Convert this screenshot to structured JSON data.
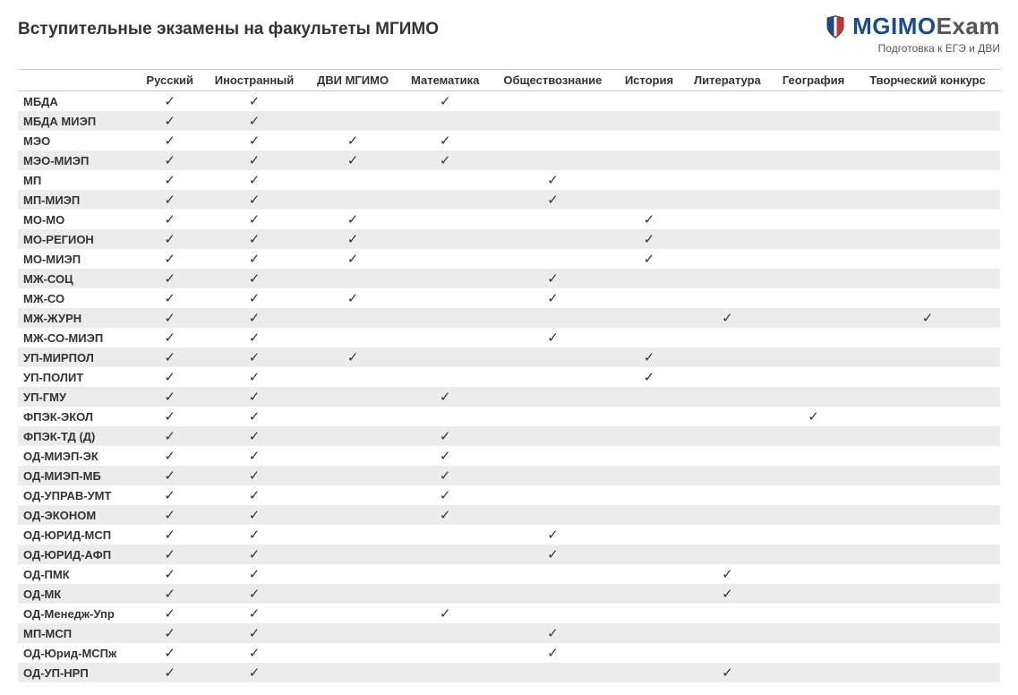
{
  "title": "Вступительные экзамены на факультеты МГИМО",
  "logo": {
    "part1": "MGIMO",
    "part2": "Exam",
    "subtitle": "Подготовка к ЕГЭ и ДВИ",
    "color_part1": "#1a4b8c",
    "color_part2": "#555555",
    "icon_colors": {
      "left": "#1a4b8c",
      "mid": "#ffffff",
      "right": "#c0392b",
      "outline": "#333333"
    }
  },
  "table": {
    "type": "table",
    "checkmark": "✓",
    "check_color": "#333333",
    "header_border_color": "#cccccc",
    "row_bg_odd": "#ffffff",
    "row_bg_even": "#ececec",
    "font_size": 13,
    "columns": [
      "",
      "Русский",
      "Иностранный",
      "ДВИ МГИМО",
      "Математика",
      "Обществознание",
      "История",
      "Литература",
      "География",
      "Творческий конкурс"
    ],
    "rows": [
      {
        "label": "МБДА",
        "marks": [
          1,
          1,
          0,
          1,
          0,
          0,
          0,
          0,
          0
        ]
      },
      {
        "label": "МБДА МИЭП",
        "marks": [
          1,
          1,
          0,
          0,
          0,
          0,
          0,
          0,
          0
        ]
      },
      {
        "label": "МЭО",
        "marks": [
          1,
          1,
          1,
          1,
          0,
          0,
          0,
          0,
          0
        ]
      },
      {
        "label": "МЭО-МИЭП",
        "marks": [
          1,
          1,
          1,
          1,
          0,
          0,
          0,
          0,
          0
        ]
      },
      {
        "label": "МП",
        "marks": [
          1,
          1,
          0,
          0,
          1,
          0,
          0,
          0,
          0
        ]
      },
      {
        "label": "МП-МИЭП",
        "marks": [
          1,
          1,
          0,
          0,
          1,
          0,
          0,
          0,
          0
        ]
      },
      {
        "label": "МО-МО",
        "marks": [
          1,
          1,
          1,
          0,
          0,
          1,
          0,
          0,
          0
        ]
      },
      {
        "label": "МО-РЕГИОН",
        "marks": [
          1,
          1,
          1,
          0,
          0,
          1,
          0,
          0,
          0
        ]
      },
      {
        "label": "МО-МИЭП",
        "marks": [
          1,
          1,
          1,
          0,
          0,
          1,
          0,
          0,
          0
        ]
      },
      {
        "label": "МЖ-СОЦ",
        "marks": [
          1,
          1,
          0,
          0,
          1,
          0,
          0,
          0,
          0
        ]
      },
      {
        "label": "МЖ-СО",
        "marks": [
          1,
          1,
          1,
          0,
          1,
          0,
          0,
          0,
          0
        ]
      },
      {
        "label": "МЖ-ЖУРН",
        "marks": [
          1,
          1,
          0,
          0,
          0,
          0,
          1,
          0,
          1
        ]
      },
      {
        "label": "МЖ-СО-МИЭП",
        "marks": [
          1,
          1,
          0,
          0,
          1,
          0,
          0,
          0,
          0
        ]
      },
      {
        "label": "УП-МИРПОЛ",
        "marks": [
          1,
          1,
          1,
          0,
          0,
          1,
          0,
          0,
          0
        ]
      },
      {
        "label": "УП-ПОЛИТ",
        "marks": [
          1,
          1,
          0,
          0,
          0,
          1,
          0,
          0,
          0
        ]
      },
      {
        "label": "УП-ГМУ",
        "marks": [
          1,
          1,
          0,
          1,
          0,
          0,
          0,
          0,
          0
        ]
      },
      {
        "label": "ФПЭК-ЭКОЛ",
        "marks": [
          1,
          1,
          0,
          0,
          0,
          0,
          0,
          1,
          0
        ]
      },
      {
        "label": "ФПЭК-ТД (Д)",
        "marks": [
          1,
          1,
          0,
          1,
          0,
          0,
          0,
          0,
          0
        ]
      },
      {
        "label": "ОД-МИЭП-ЭК",
        "marks": [
          1,
          1,
          0,
          1,
          0,
          0,
          0,
          0,
          0
        ]
      },
      {
        "label": "ОД-МИЭП-МБ",
        "marks": [
          1,
          1,
          0,
          1,
          0,
          0,
          0,
          0,
          0
        ]
      },
      {
        "label": "ОД-УПРАВ-УМТ",
        "marks": [
          1,
          1,
          0,
          1,
          0,
          0,
          0,
          0,
          0
        ]
      },
      {
        "label": "ОД-ЭКОНОМ",
        "marks": [
          1,
          1,
          0,
          1,
          0,
          0,
          0,
          0,
          0
        ]
      },
      {
        "label": "ОД-ЮРИД-МСП",
        "marks": [
          1,
          1,
          0,
          0,
          1,
          0,
          0,
          0,
          0
        ]
      },
      {
        "label": "ОД-ЮРИД-АФП",
        "marks": [
          1,
          1,
          0,
          0,
          1,
          0,
          0,
          0,
          0
        ]
      },
      {
        "label": "ОД-ПМК",
        "marks": [
          1,
          1,
          0,
          0,
          0,
          0,
          1,
          0,
          0
        ]
      },
      {
        "label": "ОД-МК",
        "marks": [
          1,
          1,
          0,
          0,
          0,
          0,
          1,
          0,
          0
        ]
      },
      {
        "label": "ОД-Менедж-Упр",
        "marks": [
          1,
          1,
          0,
          1,
          0,
          0,
          0,
          0,
          0
        ]
      },
      {
        "label": "МП-МСП",
        "marks": [
          1,
          1,
          0,
          0,
          1,
          0,
          0,
          0,
          0
        ]
      },
      {
        "label": "ОД-Юрид-МСПж",
        "marks": [
          1,
          1,
          0,
          0,
          1,
          0,
          0,
          0,
          0
        ]
      },
      {
        "label": "ОД-УП-НРП",
        "marks": [
          1,
          1,
          0,
          0,
          0,
          0,
          1,
          0,
          0
        ]
      }
    ]
  }
}
